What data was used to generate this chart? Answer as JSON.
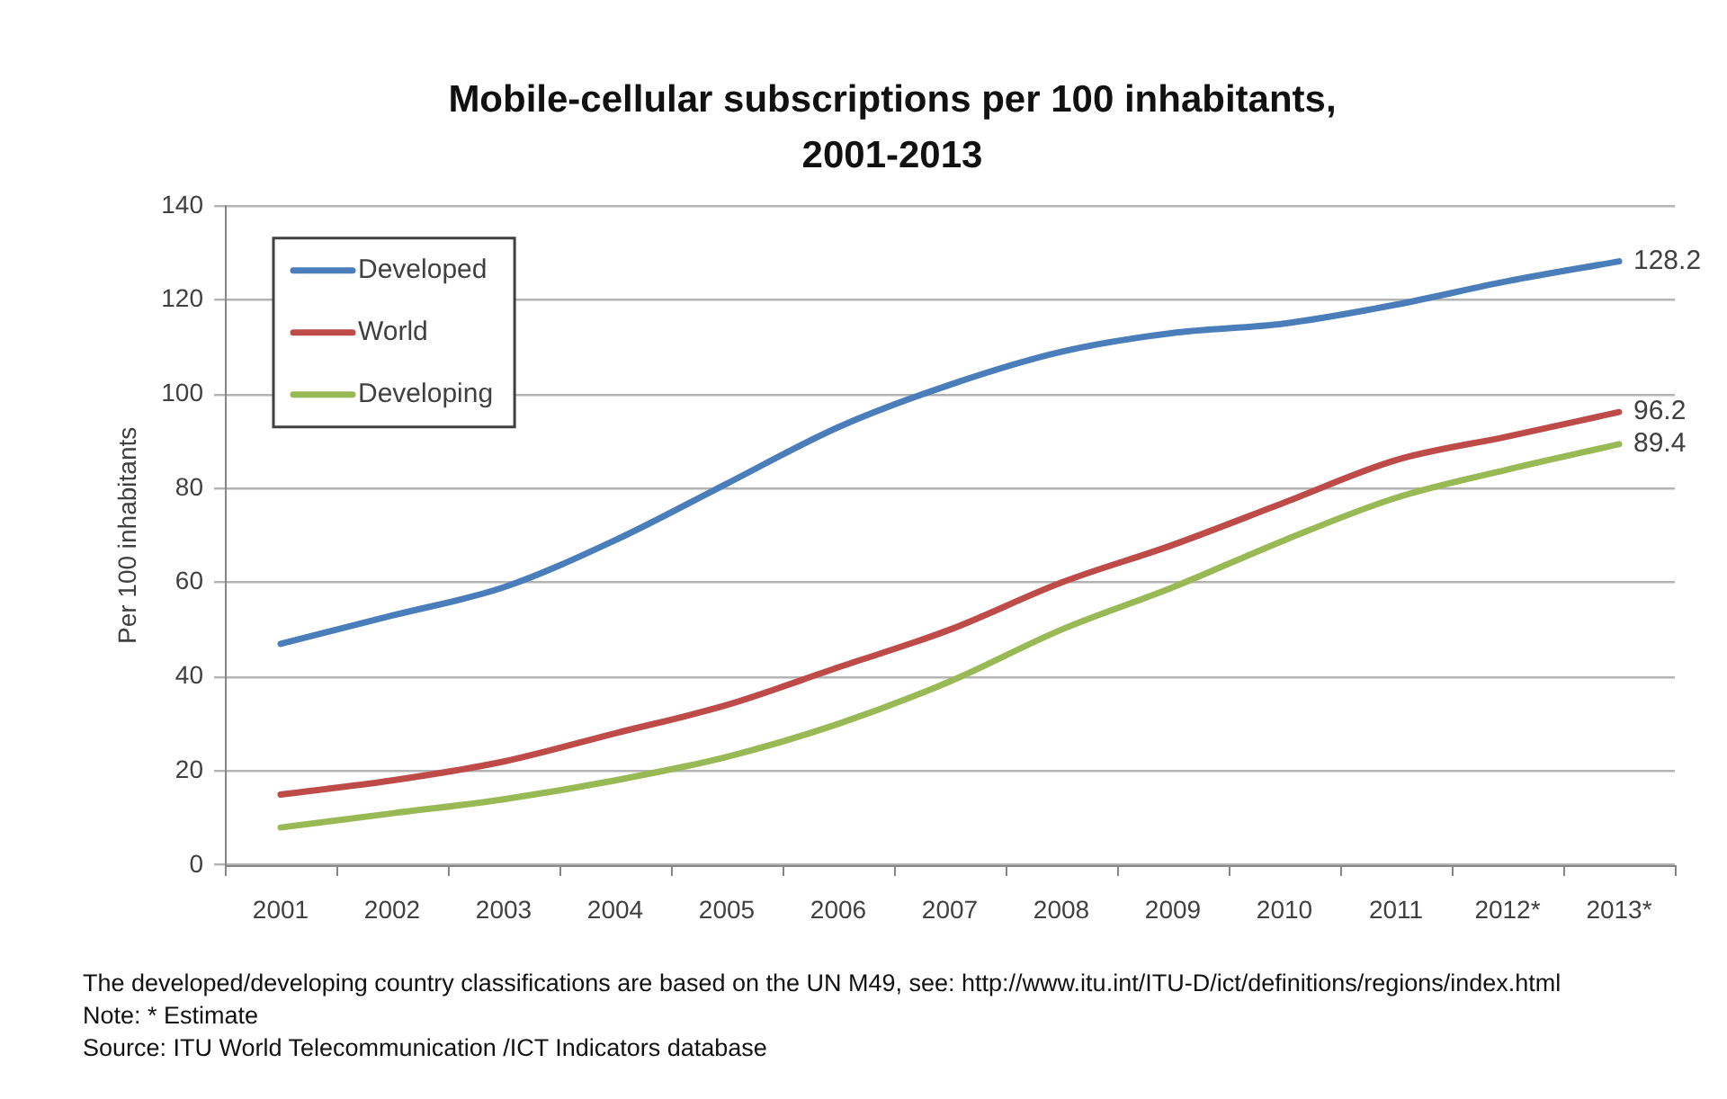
{
  "chart_data": {
    "type": "line",
    "title": "Mobile-cellular subscriptions per 100 inhabitants, 2001-2013",
    "ylabel": "Per 100 inhabitants",
    "categories": [
      "2001",
      "2002",
      "2003",
      "2004",
      "2005",
      "2006",
      "2007",
      "2008",
      "2009",
      "2010",
      "2011",
      "2012*",
      "2013*"
    ],
    "series": [
      {
        "name": "Developed",
        "color": "#4a7ebb",
        "values": [
          47,
          53,
          59,
          69,
          81,
          93,
          102,
          109,
          113,
          115,
          119,
          124,
          128.2
        ],
        "value_labels": [
          null,
          null,
          null,
          null,
          null,
          null,
          null,
          null,
          null,
          null,
          null,
          null,
          "128.2"
        ]
      },
      {
        "name": "World",
        "color": "#be4b48",
        "values": [
          15,
          18,
          22,
          28,
          34,
          42,
          50,
          60,
          68,
          77,
          86,
          91,
          96.2
        ],
        "value_labels": [
          null,
          null,
          null,
          null,
          null,
          null,
          null,
          null,
          null,
          null,
          null,
          null,
          "96.2"
        ]
      },
      {
        "name": "Developing",
        "color": "#98b954",
        "values": [
          8,
          11,
          14,
          18,
          23,
          30,
          39,
          50,
          59,
          69,
          78,
          84,
          89.4
        ],
        "value_labels": [
          null,
          null,
          null,
          null,
          null,
          null,
          null,
          null,
          null,
          null,
          null,
          null,
          "89.4"
        ]
      }
    ],
    "ylim": [
      0,
      140
    ],
    "yticks": [
      0,
      20,
      40,
      60,
      80,
      100,
      120,
      140
    ],
    "grid": "y",
    "legend": "top left",
    "marker": "none",
    "annotations": [
      "The developed/developing country classifications are based on the UN M49, see: http://www.itu.int/ITU-D/ict/definitions/regions/index.html",
      "Note: * Estimate",
      "Source: ITU World Telecommunication /ICT Indicators database"
    ]
  }
}
